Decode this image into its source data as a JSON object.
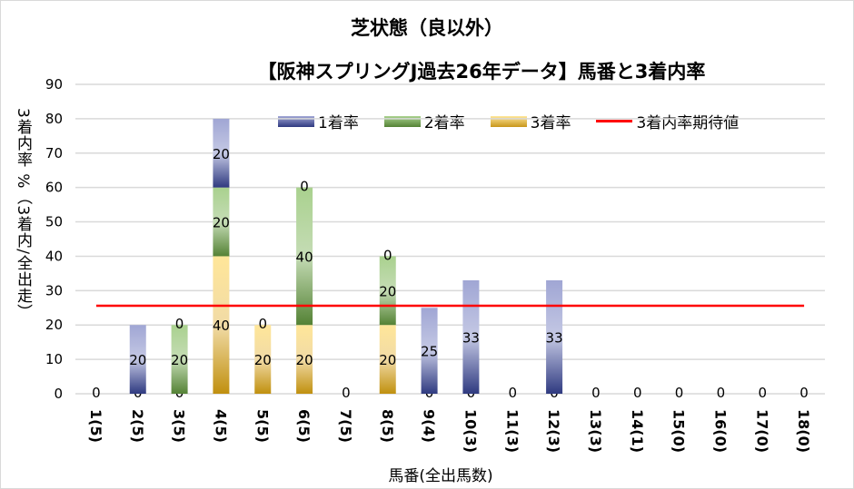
{
  "chart_data": {
    "type": "bar",
    "stacked": true,
    "title": "芝状態（良以外）",
    "subtitle": "【阪神スプリングJ過去26年データ】馬番と3着内率",
    "xlabel": "馬番(全出馬数)",
    "ylabel": "3着内率 %（3着内/全出走）",
    "ylim": [
      0,
      90
    ],
    "yticks": [
      0,
      10,
      20,
      30,
      40,
      50,
      60,
      70,
      80,
      90
    ],
    "grid": true,
    "legend_position": "top-right",
    "categories": [
      "1(5)",
      "2(5)",
      "3(5)",
      "4(5)",
      "5(5)",
      "6(5)",
      "7(5)",
      "8(5)",
      "9(4)",
      "10(3)",
      "11(3)",
      "12(3)",
      "13(3)",
      "14(1)",
      "15(0)",
      "16(0)",
      "17(0)",
      "18(0)"
    ],
    "series": [
      {
        "name": "3着率",
        "color": "#c8961a",
        "values": [
          0,
          0,
          0,
          40,
          20,
          20,
          0,
          20,
          0,
          0,
          0,
          0,
          0,
          0,
          0,
          0,
          0,
          0
        ]
      },
      {
        "name": "2着率",
        "color": "#548235",
        "values": [
          0,
          0,
          20,
          20,
          0,
          40,
          0,
          20,
          0,
          0,
          0,
          0,
          0,
          0,
          0,
          0,
          0,
          0
        ]
      },
      {
        "name": "1着率",
        "color": "#2f3a80",
        "values": [
          0,
          20,
          0,
          20,
          0,
          0,
          0,
          0,
          25,
          33,
          0,
          33,
          0,
          0,
          0,
          0,
          0,
          0
        ]
      }
    ],
    "reference_line": {
      "name": "3着内率期待値",
      "color": "#ff0000",
      "value": 25.6
    }
  }
}
